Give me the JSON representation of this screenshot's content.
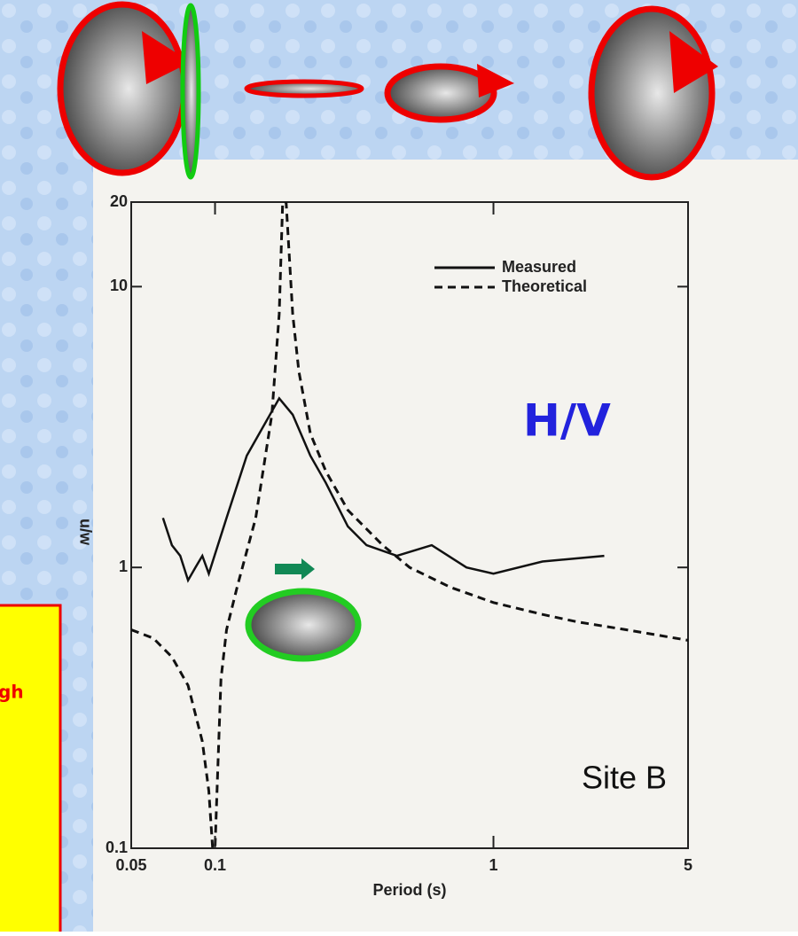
{
  "callout": "gh",
  "chart_data": {
    "type": "line",
    "x_label": "Period (s)",
    "y_label": "u/w",
    "annotations": [
      "H/V",
      "Site B"
    ],
    "log_x": true,
    "log_y": true,
    "xlim": [
      0.05,
      5
    ],
    "ylim": [
      0.1,
      20
    ],
    "xticks": [
      0.05,
      0.1,
      1,
      5
    ],
    "yticks": [
      0.1,
      1,
      10,
      20
    ],
    "legend": "upper right",
    "series": [
      {
        "name": "Measured",
        "color": "#111111",
        "dash": false,
        "x": [
          0.065,
          0.07,
          0.075,
          0.08,
          0.085,
          0.09,
          0.095,
          0.11,
          0.13,
          0.17,
          0.19,
          0.22,
          0.25,
          0.3,
          0.35,
          0.45,
          0.6,
          0.8,
          1.0,
          1.5,
          2.5
        ],
        "values": [
          1.5,
          1.2,
          1.1,
          0.9,
          1.0,
          1.1,
          0.95,
          1.5,
          2.5,
          4.0,
          3.5,
          2.5,
          2.0,
          1.4,
          1.2,
          1.1,
          1.2,
          1.0,
          0.95,
          1.05,
          1.1
        ]
      },
      {
        "name": "Theoretical",
        "color": "#111111",
        "dash": true,
        "x": [
          0.05,
          0.06,
          0.07,
          0.08,
          0.09,
          0.095,
          0.098,
          0.1,
          0.105,
          0.11,
          0.12,
          0.14,
          0.16,
          0.17,
          0.175,
          0.18,
          0.19,
          0.2,
          0.22,
          0.25,
          0.3,
          0.4,
          0.5,
          0.7,
          1,
          1.5,
          2,
          3,
          5
        ],
        "values": [
          0.6,
          0.56,
          0.48,
          0.38,
          0.24,
          0.16,
          0.1,
          0.1,
          0.4,
          0.6,
          0.85,
          1.5,
          3.5,
          8,
          20,
          20,
          8,
          5,
          3,
          2.2,
          1.6,
          1.2,
          1.0,
          0.85,
          0.75,
          0.68,
          0.64,
          0.6,
          0.55
        ]
      }
    ]
  }
}
